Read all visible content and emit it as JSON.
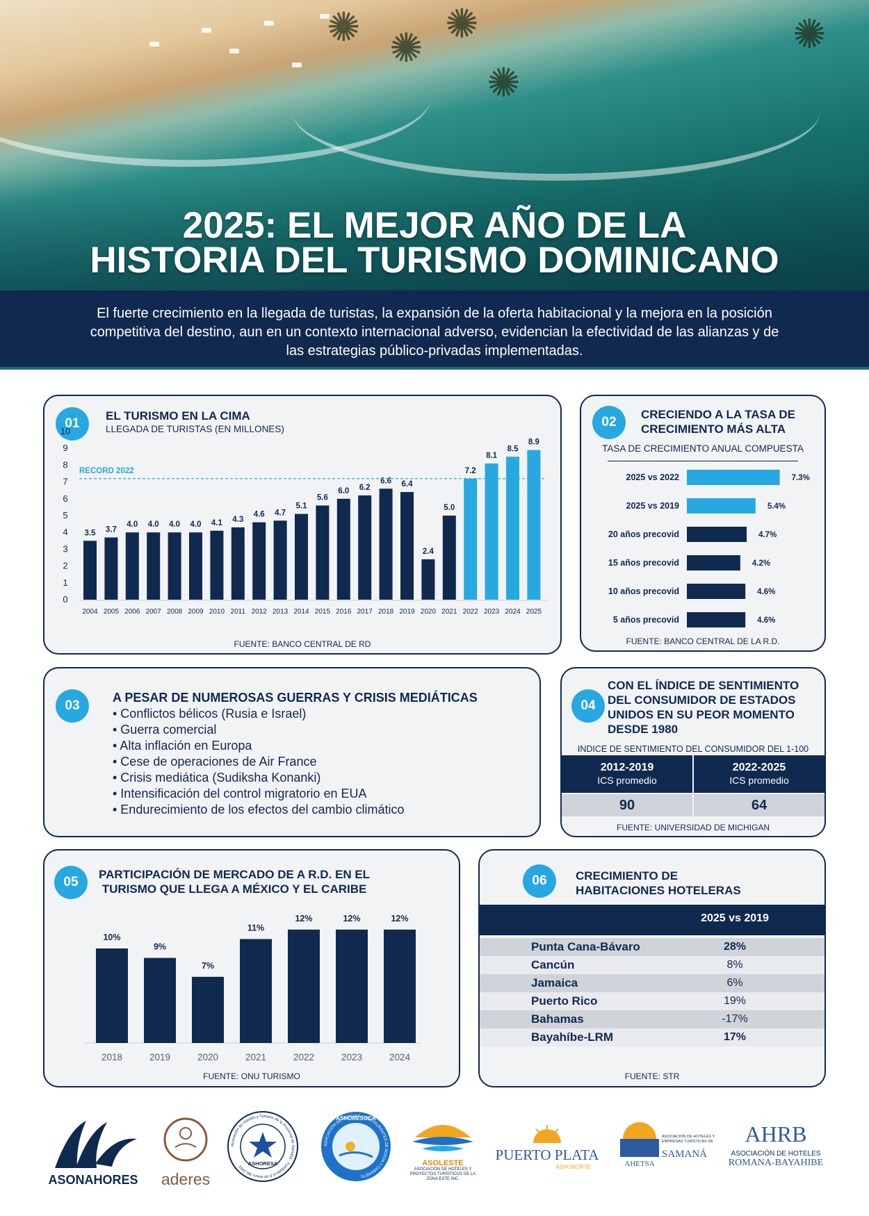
{
  "colors": {
    "navy": "#10294f",
    "accent": "#28a8e0",
    "card_bg": "#f2f3f5",
    "record_line": "#28a8e0"
  },
  "header": {
    "title_line1": "2025: EL MEJOR AÑO DE LA",
    "title_line2": "HISTORIA DEL TURISMO DOMINICANO",
    "intro": "El fuerte crecimiento en la llegada de turistas, la expansión de la oferta habitacional y la mejora en la posición competitiva del destino, aun en un contexto internacional adverso, evidencian la efectividad de las alianzas y de las estrategias público-privadas implementadas."
  },
  "section1": {
    "num": "01",
    "title": "EL TURISMO EN LA CIMA",
    "subtitle": "LLEGADA DE TURISTAS (EN MILLONES)",
    "record_label": "RECORD 2022",
    "source": "FUENTE: BANCO CENTRAL DE RD"
  },
  "section2": {
    "num": "02",
    "title_line1": "CRECIENDO A LA TASA DE",
    "title_line2": "CRECIMIENTO MÁS ALTA",
    "subtitle": "TASA DE CRECIMIENTO ANUAL COMPUESTA",
    "source": "FUENTE: BANCO CENTRAL DE LA R.D."
  },
  "section3": {
    "num": "03",
    "title": "A PESAR DE NUMEROSAS GUERRAS Y CRISIS MEDIÁTICAS",
    "items": [
      "• Conflictos bélicos (Rusia e Israel)",
      "• Guerra comercial",
      "• Alta inflación en Europa",
      "• Cese de operaciones de Air France",
      "• Crisis mediática (Sudiksha Konanki)",
      "• Intensificación del control migratorio en EUA",
      "• Endurecimiento de los efectos del cambio climático"
    ]
  },
  "section4": {
    "num": "04",
    "title_lines": [
      "CON EL ÍNDICE DE SENTIMIENTO",
      "DEL CONSUMIDOR DE ESTADOS",
      "UNIDOS EN SU PEOR MOMENTO",
      "DESDE 1980"
    ],
    "subtitle": "INDICE DE SENTIMIENTO DEL CONSUMIDOR DEL 1-100",
    "col1_year": "2012-2019",
    "col1_label": "ICS promedio",
    "col1_value": "90",
    "col2_year": "2022-2025",
    "col2_label": "ICS promedio",
    "col2_value": "64",
    "source": "FUENTE: UNIVERSIDAD DE MICHIGAN"
  },
  "section5": {
    "num": "05",
    "title_line1": "PARTICIPACIÓN DE MERCADO DE A R.D. EN EL",
    "title_line2": "TURISMO QUE LLEGA A MÉXICO Y EL CARIBE",
    "source": "FUENTE: ONU TURISMO"
  },
  "section6": {
    "num": "06",
    "title_line1": "CRECIMIENTO DE",
    "title_line2": "HABITACIONES HOTELERAS",
    "column_header": "2025 vs 2019",
    "rows": [
      {
        "name": "Punta Cana-Bávaro",
        "value": "28%"
      },
      {
        "name": "Cancún",
        "value": "8%"
      },
      {
        "name": "Jamaica",
        "value": "6%"
      },
      {
        "name": "Puerto Rico",
        "value": "19%"
      },
      {
        "name": "Bahamas",
        "value": "-17%"
      },
      {
        "name": "Bayahíbe-LRM",
        "value": "17%"
      }
    ],
    "source": "FUENTE: STR"
  },
  "logos": {
    "asonahores": "ASONAHORES",
    "aderes": "aderes",
    "ashoresa": "ASHORESA",
    "ashoresa_ring": "Asociación de Hoteles y Turismo de la Provincia de Samaná · Fundada el 8 de enero del 2001",
    "ashoresoca": "ASHORESOCA",
    "ashoresoca_ring": "ASOCIACIÓN DE HOTELES Y RESTAURANTES DE SOSÚA Y CABARETE",
    "asoleste": "ASOLESTE",
    "asoleste_sub": "ASOCIACIÓN DE HOTELES Y PROYECTOS TURÍSTICOS DE LA ZONA ESTE INC.",
    "puertoplata": "PUERTO PLATA",
    "puertoplata_sub": "ASHONORTE",
    "ahetsa": "AHETSA",
    "ahetsa_sub": "ASOCIACIÓN DE HOTELES Y EMPRESAS TURÍSTICAS DE",
    "samana": "SAMANÁ",
    "ahrb": "AHRB",
    "ahrb_sub1": "ASOCIACIÓN DE HOTELES",
    "ahrb_sub2": "ROMANA-BAYAHIBE"
  },
  "chart_data": [
    {
      "type": "bar",
      "title": "EL TURISMO EN LA CIMA",
      "ylabel": "LLEGADA DE TURISTAS (EN MILLONES)",
      "ylim": [
        0,
        10
      ],
      "yticks": [
        0,
        1,
        2,
        3,
        4,
        5,
        6,
        7,
        8,
        9,
        10
      ],
      "categories": [
        "2004",
        "2005",
        "2006",
        "2007",
        "2008",
        "2009",
        "2010",
        "2011",
        "2012",
        "2013",
        "2014",
        "2015",
        "2016",
        "2017",
        "2018",
        "2019",
        "2020",
        "2021",
        "2022",
        "2023",
        "2024",
        "2025"
      ],
      "values": [
        3.5,
        3.7,
        4.0,
        4.0,
        4.0,
        4.0,
        4.1,
        4.3,
        4.6,
        4.7,
        5.1,
        5.6,
        6.0,
        6.2,
        6.6,
        6.4,
        2.4,
        5.0,
        7.2,
        8.1,
        8.5,
        8.9
      ],
      "labels": [
        "3.5",
        "3.7",
        "4.0",
        "4.0",
        "4.0",
        "4.0",
        "4.1",
        "4.3",
        "4.6",
        "4.7",
        "5.1",
        "5.6",
        "6.0",
        "6.2",
        "6.6",
        "6.4",
        "2.4",
        "5.0",
        "7.2",
        "8.1",
        "8.5",
        "8.9"
      ],
      "highlight_from": "2022",
      "reference_line": {
        "value": 7.2,
        "label": "RECORD 2022"
      }
    },
    {
      "type": "bar",
      "orientation": "horizontal",
      "title": "TASA DE CRECIMIENTO ANUAL COMPUESTA",
      "categories": [
        "2025 vs 2022",
        "2025 vs 2019",
        "20 años precovid",
        "15 años precovid",
        "10 años precovid",
        "5 años precovid"
      ],
      "values": [
        7.3,
        5.4,
        4.7,
        4.2,
        4.6,
        4.6
      ],
      "labels": [
        "7.3%",
        "5.4%",
        "4.7%",
        "4.2%",
        "4.6%",
        "4.6%"
      ],
      "highlighted": [
        true,
        true,
        false,
        false,
        false,
        false
      ]
    },
    {
      "type": "bar",
      "title": "PARTICIPACIÓN DE MERCADO DE A R.D. EN EL TURISMO QUE LLEGA A MÉXICO Y EL CARIBE",
      "categories": [
        "2018",
        "2019",
        "2020",
        "2021",
        "2022",
        "2023",
        "2024"
      ],
      "values": [
        10,
        9,
        7,
        11,
        12,
        12,
        12
      ],
      "labels": [
        "10%",
        "9%",
        "7%",
        "11%",
        "12%",
        "12%",
        "12%"
      ],
      "ylim": [
        0,
        14
      ]
    }
  ]
}
